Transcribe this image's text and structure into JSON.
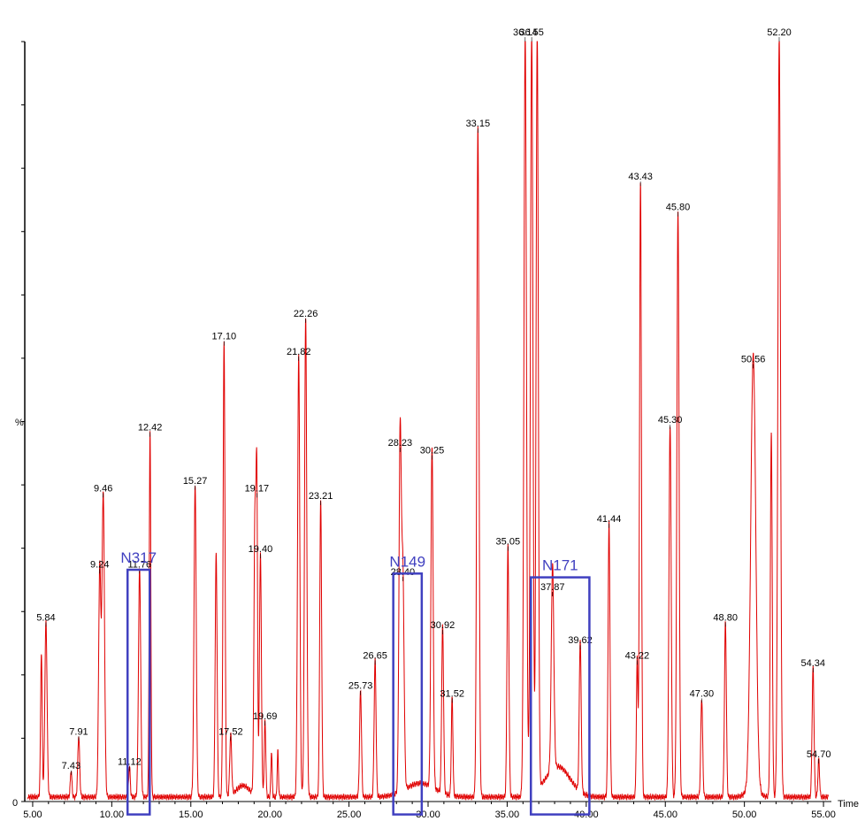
{
  "chart_data": {
    "type": "line",
    "title": "",
    "xlabel": "Time",
    "ylabel": "%",
    "y_zero_label": "0",
    "xlim": [
      4.5,
      55.5
    ],
    "ylim": [
      0,
      100
    ],
    "x_ticks": [
      "5.00",
      "10.00",
      "15.00",
      "20.00",
      "25.00",
      "30.00",
      "35.00",
      "40.00",
      "45.00",
      "50.00",
      "55.00"
    ],
    "line_color": "#e00000",
    "box_color": "#4040c0",
    "peaks": [
      {
        "x": 5.55,
        "y": 19,
        "w": 0.05
      },
      {
        "x": 5.84,
        "y": 23,
        "w": 0.07,
        "label": "5.84"
      },
      {
        "x": 7.43,
        "y": 3.5,
        "w": 0.05,
        "label": "7.43"
      },
      {
        "x": 7.91,
        "y": 8,
        "w": 0.06,
        "label": "7.91"
      },
      {
        "x": 9.24,
        "y": 30,
        "w": 0.07,
        "label": "9.24"
      },
      {
        "x": 9.46,
        "y": 40,
        "w": 0.08,
        "label": "9.46"
      },
      {
        "x": 11.12,
        "y": 4,
        "w": 0.05,
        "label": "11.12"
      },
      {
        "x": 11.76,
        "y": 30,
        "w": 0.07,
        "label": "11.76"
      },
      {
        "x": 12.42,
        "y": 48,
        "w": 0.05,
        "label": "12.42"
      },
      {
        "x": 15.27,
        "y": 41,
        "w": 0.07,
        "label": "15.27"
      },
      {
        "x": 16.6,
        "y": 32,
        "w": 0.06
      },
      {
        "x": 17.1,
        "y": 60,
        "w": 0.06,
        "label": "17.10"
      },
      {
        "x": 17.52,
        "y": 8,
        "w": 0.06,
        "label": "17.52"
      },
      {
        "x": 19.05,
        "y": 36,
        "w": 0.06
      },
      {
        "x": 19.17,
        "y": 40,
        "w": 0.05,
        "label": "19.17"
      },
      {
        "x": 19.4,
        "y": 32,
        "w": 0.06,
        "label": "19.40"
      },
      {
        "x": 19.69,
        "y": 10,
        "w": 0.05,
        "label": "19.69"
      },
      {
        "x": 20.1,
        "y": 6,
        "w": 0.04
      },
      {
        "x": 20.5,
        "y": 6,
        "w": 0.04
      },
      {
        "x": 21.82,
        "y": 58,
        "w": 0.07,
        "label": "21.82"
      },
      {
        "x": 22.26,
        "y": 63,
        "w": 0.07,
        "label": "22.26"
      },
      {
        "x": 23.21,
        "y": 39,
        "w": 0.06,
        "label": "23.21"
      },
      {
        "x": 25.73,
        "y": 14,
        "w": 0.06,
        "label": "25.73"
      },
      {
        "x": 26.65,
        "y": 18,
        "w": 0.06,
        "label": "26.65"
      },
      {
        "x": 28.23,
        "y": 46,
        "w": 0.07,
        "label": "28.23"
      },
      {
        "x": 28.4,
        "y": 29,
        "w": 0.08,
        "label": "28.40"
      },
      {
        "x": 30.25,
        "y": 45,
        "w": 0.07,
        "label": "30.25"
      },
      {
        "x": 30.92,
        "y": 22,
        "w": 0.06,
        "label": "30.92"
      },
      {
        "x": 31.52,
        "y": 13,
        "w": 0.05,
        "label": "31.52"
      },
      {
        "x": 33.15,
        "y": 88,
        "w": 0.07,
        "label": "33.15"
      },
      {
        "x": 35.05,
        "y": 33,
        "w": 0.06,
        "label": "35.05"
      },
      {
        "x": 36.14,
        "y": 100,
        "w": 0.08,
        "label": "36.14"
      },
      {
        "x": 36.55,
        "y": 100,
        "w": 0.08,
        "label": "36.55"
      },
      {
        "x": 36.9,
        "y": 100,
        "w": 0.07
      },
      {
        "x": 37.87,
        "y": 27,
        "w": 0.08,
        "label": "37.87"
      },
      {
        "x": 39.62,
        "y": 20,
        "w": 0.06,
        "label": "39.62"
      },
      {
        "x": 41.44,
        "y": 36,
        "w": 0.06,
        "label": "41.44"
      },
      {
        "x": 43.22,
        "y": 18,
        "w": 0.05,
        "label": "43.22"
      },
      {
        "x": 43.43,
        "y": 81,
        "w": 0.06,
        "label": "43.43"
      },
      {
        "x": 45.3,
        "y": 49,
        "w": 0.07,
        "label": "45.30"
      },
      {
        "x": 45.8,
        "y": 77,
        "w": 0.07,
        "label": "45.80"
      },
      {
        "x": 47.3,
        "y": 13,
        "w": 0.06,
        "label": "47.30"
      },
      {
        "x": 48.8,
        "y": 23,
        "w": 0.06,
        "label": "48.80"
      },
      {
        "x": 50.56,
        "y": 57,
        "w": 0.16,
        "label": "50.56"
      },
      {
        "x": 51.7,
        "y": 48,
        "w": 0.06
      },
      {
        "x": 52.2,
        "y": 100,
        "w": 0.08,
        "label": "52.20"
      },
      {
        "x": 54.34,
        "y": 17,
        "w": 0.06,
        "label": "54.34"
      },
      {
        "x": 54.7,
        "y": 5,
        "w": 0.05,
        "label": "54.70"
      }
    ],
    "boxes": [
      {
        "label": "N317",
        "x0": 11.0,
        "x1": 12.4,
        "y0": -1.7,
        "y1": 30.5
      },
      {
        "label": "N149",
        "x0": 27.8,
        "x1": 29.6,
        "y0": -1.7,
        "y1": 30.0
      },
      {
        "label": "N171",
        "x0": 36.5,
        "x1": 40.2,
        "y0": -1.7,
        "y1": 29.5
      }
    ]
  }
}
